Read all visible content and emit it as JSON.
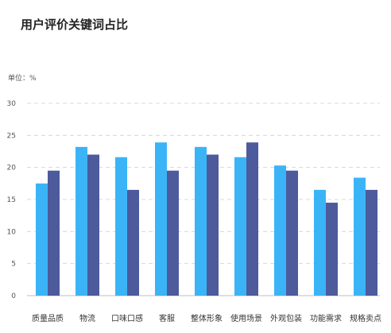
{
  "title": "用户评价关键词占比",
  "unit_label": "单位：%",
  "colors": {
    "series1": "#3bb4f7",
    "series2": "#4d5a9c",
    "grid": "#d8d8d8",
    "axis": "#bfbfbf"
  },
  "chart_data": {
    "type": "bar",
    "title": "用户评价关键词占比",
    "ylabel": "单位：%",
    "ylim": [
      0,
      30
    ],
    "yticks": [
      0,
      5,
      10,
      15,
      20,
      25,
      30
    ],
    "grid": true,
    "categories": [
      "质量品质",
      "物流",
      "口味口感",
      "客服",
      "整体形象",
      "使用场景",
      "外观包装",
      "功能需求",
      "规格卖点"
    ],
    "series": [
      {
        "values": [
          17.5,
          23.2,
          21.6,
          23.9,
          23.2,
          21.6,
          20.3,
          16.5,
          18.4
        ]
      },
      {
        "values": [
          19.5,
          22.0,
          16.5,
          19.5,
          22.0,
          23.9,
          19.5,
          14.5,
          16.5
        ]
      }
    ]
  }
}
